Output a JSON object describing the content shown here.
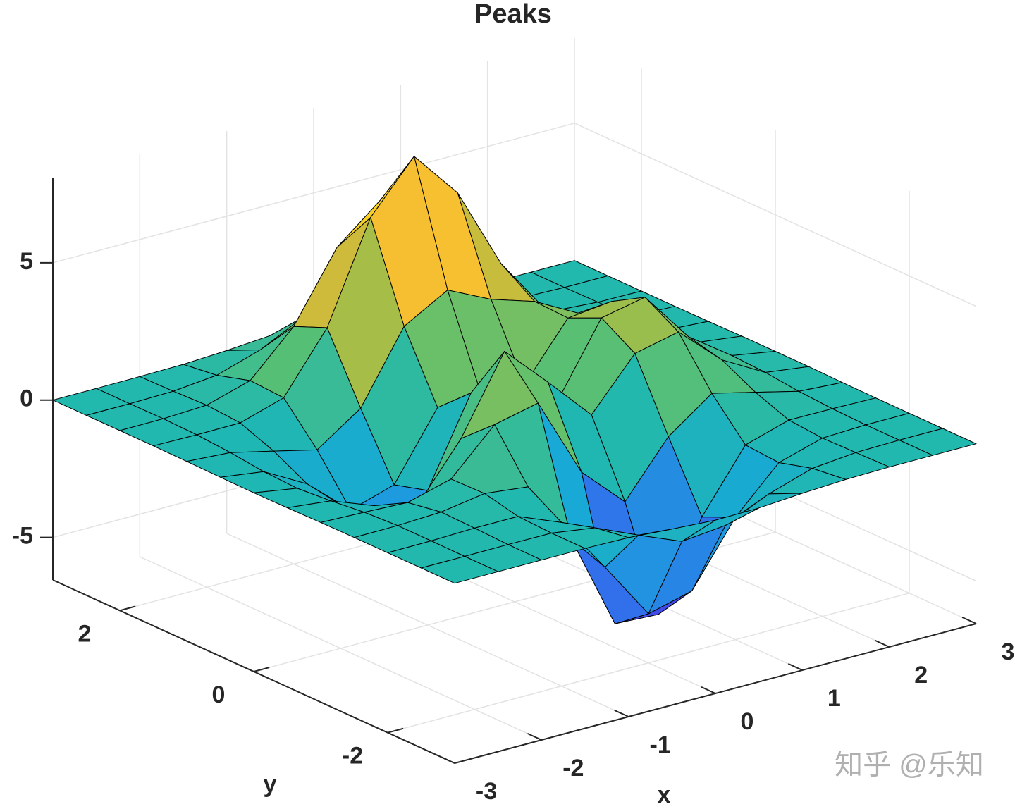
{
  "chart_data": {
    "type": "surface",
    "title": "Peaks",
    "xlabel": "x",
    "ylabel": "y",
    "x": [
      -3,
      -2.5,
      -2,
      -1.5,
      -1,
      -0.5,
      0,
      0.5,
      1,
      1.5,
      2,
      2.5,
      3
    ],
    "y": [
      -3,
      -2.5,
      -2,
      -1.5,
      -1,
      -0.5,
      0,
      0.5,
      1,
      1.5,
      2,
      2.5,
      3
    ],
    "z": [
      [
        0,
        0,
        0,
        0,
        -0.03,
        -0.14,
        -0.24,
        -0.22,
        -0.11,
        -0.03,
        0,
        0,
        0
      ],
      [
        0,
        0,
        0.01,
        0,
        -0.23,
        -0.92,
        -1.57,
        -1.41,
        -0.69,
        -0.18,
        -0.03,
        0,
        0
      ],
      [
        0,
        0.01,
        0.05,
        0.05,
        -0.59,
        -2.64,
        -4.76,
        -4.35,
        -2.1,
        -0.53,
        -0.06,
        0,
        0
      ],
      [
        0,
        0.01,
        0.08,
        0.33,
        0.15,
        -2.19,
        -5.68,
        -5.76,
        -2.64,
        -0.44,
        0.04,
        0.03,
        0
      ],
      [
        -0.01,
        -0.06,
        -0.13,
        0.3,
        1.86,
        2.22,
        -0.72,
        -2.22,
        -0.27,
        0.88,
        0.5,
        0.11,
        0.01
      ],
      [
        -0.03,
        -0.2,
        -0.8,
        -1.21,
        0.8,
        3.55,
        2,
        0.39,
        2.2,
        2.56,
        1.12,
        0.24,
        0.03
      ],
      [
        -0.04,
        -0.3,
        -1.33,
        -2.77,
        -1.65,
        1.48,
        0.98,
        0.37,
        2.94,
        3.27,
        1.41,
        0.3,
        0.03
      ],
      [
        -0.03,
        -0.25,
        -1.12,
        -2.49,
        -2,
        0.39,
        0.46,
        0.38,
        2.38,
        2.56,
        1.09,
        0.23,
        0.03
      ],
      [
        -0.01,
        -0.11,
        -0.48,
        -0.86,
        0.23,
        2.79,
        3.69,
        2.93,
        2.43,
        1.58,
        0.58,
        0.11,
        0.01
      ],
      [
        0,
        -0.02,
        -0.01,
        0.48,
        2.61,
        6.2,
        8,
        6.25,
        3.25,
        1.19,
        0.29,
        0.05,
        0
      ],
      [
        0,
        0.01,
        0.08,
        0.55,
        2.1,
        4.56,
        5.86,
        4.57,
        2.21,
        0.68,
        0.13,
        0.02,
        0
      ],
      [
        0,
        0,
        0.03,
        0.19,
        0.69,
        1.47,
        1.88,
        1.47,
        0.7,
        0.2,
        0.04,
        0,
        0
      ],
      [
        0,
        0,
        0.01,
        0.03,
        0.11,
        0.23,
        0.3,
        0.23,
        0.11,
        0.03,
        0.01,
        0,
        0
      ]
    ],
    "xlim": [
      -3,
      3
    ],
    "ylim": [
      -3,
      3
    ],
    "zlim": [
      -6.55,
      8.1
    ],
    "xticks": [
      -3,
      -2,
      -1,
      0,
      1,
      2,
      3
    ],
    "yticks": [
      -2,
      0,
      2
    ],
    "zticks": [
      -5,
      0,
      5
    ],
    "grid": true,
    "edge_color": "#000000",
    "colormap": [
      "#3e26a8",
      "#4050f0",
      "#2a7ee8",
      "#18a8d8",
      "#20b8b0",
      "#5cc070",
      "#b4bd40",
      "#f5b935",
      "#f8d820",
      "#f9fb0e"
    ]
  },
  "watermark": "知乎 @乐知"
}
